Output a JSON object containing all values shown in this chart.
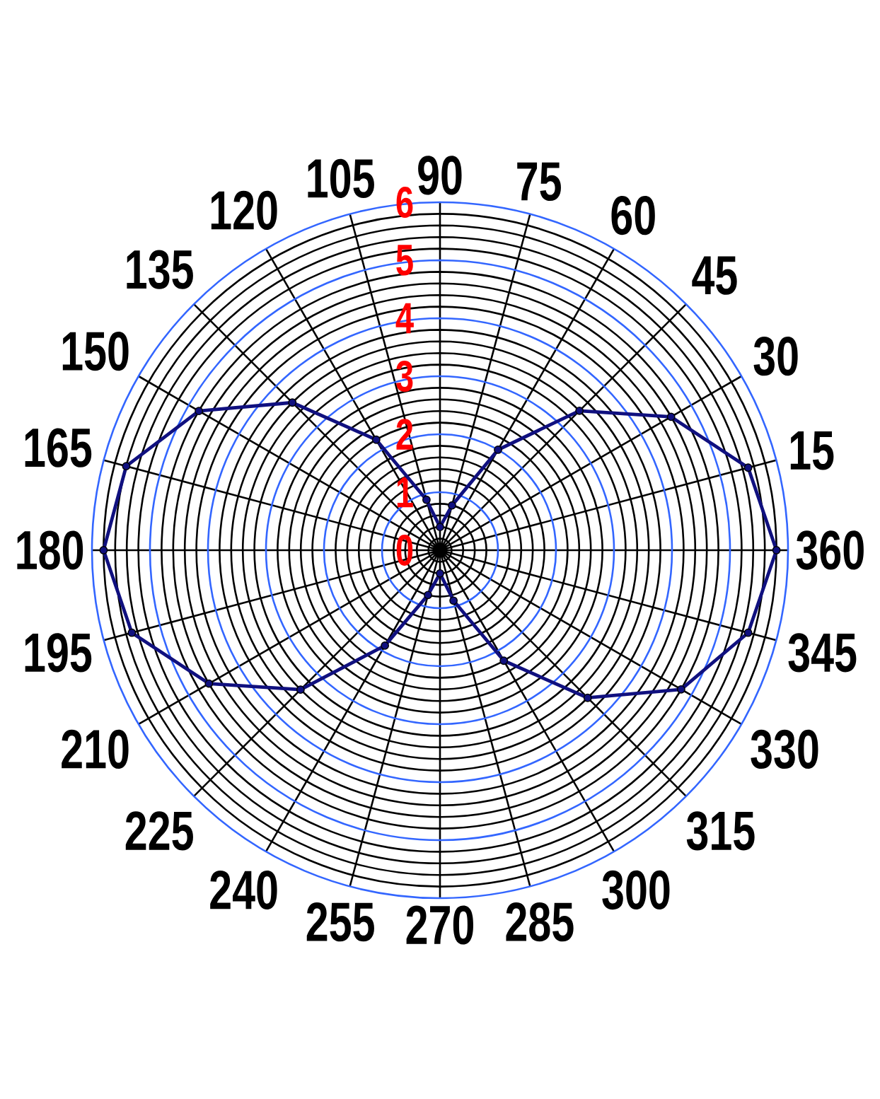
{
  "chart_data": {
    "type": "radar",
    "categories": [
      "90",
      "75",
      "60",
      "45",
      "30",
      "15",
      "360",
      "345",
      "330",
      "315",
      "300",
      "285",
      "270",
      "255",
      "240",
      "225",
      "210",
      "195",
      "180",
      "165",
      "150",
      "135",
      "120",
      "105"
    ],
    "series": [
      {
        "color": "#10107f",
        "values": [
          0.4,
          0.8,
          2.0,
          3.4,
          4.6,
          5.5,
          5.8,
          5.5,
          4.8,
          3.6,
          2.2,
          0.9,
          0.4,
          0.8,
          1.9,
          3.4,
          4.6,
          5.5,
          5.8,
          5.6,
          4.8,
          3.6,
          2.2,
          0.9
        ]
      }
    ],
    "ylim": [
      0,
      6
    ],
    "yticks": [
      0,
      1,
      2,
      3,
      4,
      5,
      6
    ],
    "grid": true,
    "marker": "circle"
  }
}
